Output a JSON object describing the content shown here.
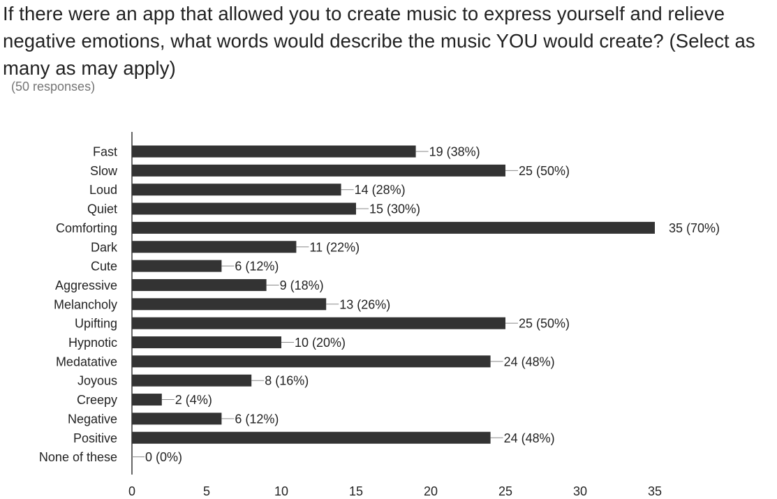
{
  "question": "If there were an app that allowed you to create music to express yourself and relieve negative emotions, what words would describe the music YOU would create? (Select as many as may apply)",
  "responses_text": "(50 responses)",
  "chart_data": {
    "type": "bar",
    "orientation": "horizontal",
    "categories": [
      "Fast",
      "Slow",
      "Loud",
      "Quiet",
      "Comforting",
      "Dark",
      "Cute",
      "Aggressive",
      "Melancholy",
      "Upifting",
      "Hypnotic",
      "Medatative",
      "Joyous",
      "Creepy",
      "Negative",
      "Positive",
      "None of these"
    ],
    "values": [
      19,
      25,
      14,
      15,
      35,
      11,
      6,
      9,
      13,
      25,
      10,
      24,
      8,
      2,
      6,
      24,
      0
    ],
    "data_labels": [
      "19 (38%)",
      "25 (50%)",
      "14 (28%)",
      "15 (30%)",
      "35 (70%)",
      "11 (22%)",
      "6 (12%)",
      "9 (18%)",
      "13 (26%)",
      "25 (50%)",
      "10 (20%)",
      "24 (48%)",
      "8 (16%)",
      "2 (4%)",
      "6 (12%)",
      "24 (48%)",
      "0 (0%)"
    ],
    "xlim": [
      0,
      35
    ],
    "x_ticks": [
      0,
      5,
      10,
      15,
      20,
      25,
      30,
      35
    ],
    "title": "",
    "xlabel": "",
    "ylabel": "",
    "grid": false,
    "bar_color": "#333333"
  }
}
